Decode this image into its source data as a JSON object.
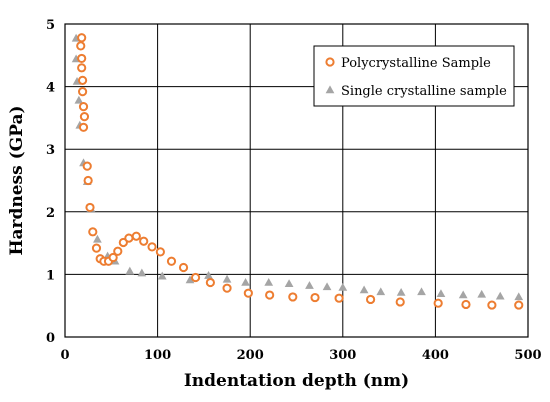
{
  "chart_data": {
    "type": "scatter",
    "title": "",
    "xlabel": "Indentation depth (nm)",
    "ylabel": "Hardness (GPa)",
    "xlim": [
      0,
      500
    ],
    "ylim": [
      0,
      5
    ],
    "xticks": [
      "0",
      "100",
      "200",
      "300",
      "400",
      "500"
    ],
    "yticks": [
      "0",
      "1",
      "2",
      "3",
      "4",
      "5"
    ],
    "grid": true,
    "legend_position": "top-right",
    "series": [
      {
        "name": "Polycrystalline Sample",
        "marker": "open-circle",
        "color": "#ED7D31",
        "x": [
          18,
          17,
          18,
          18,
          19,
          19,
          20,
          21,
          20,
          24,
          25,
          27,
          30,
          34,
          38,
          42,
          47,
          52,
          57,
          63,
          69,
          77,
          85,
          94,
          103,
          115,
          128,
          141,
          157,
          175,
          198,
          221,
          246,
          270,
          296,
          330,
          362,
          403,
          433,
          461,
          490
        ],
        "y": [
          4.78,
          4.65,
          4.45,
          4.3,
          4.1,
          3.92,
          3.68,
          3.52,
          3.35,
          2.73,
          2.5,
          2.07,
          1.68,
          1.42,
          1.25,
          1.21,
          1.21,
          1.27,
          1.37,
          1.51,
          1.58,
          1.61,
          1.53,
          1.44,
          1.36,
          1.21,
          1.11,
          0.95,
          0.87,
          0.78,
          0.7,
          0.67,
          0.64,
          0.63,
          0.62,
          0.6,
          0.56,
          0.54,
          0.52,
          0.51,
          0.51
        ]
      },
      {
        "name": "Single crystalline sample",
        "marker": "filled-triangle",
        "color": "#A5A5A5",
        "x": [
          12,
          12,
          13,
          15,
          16,
          20,
          24,
          28,
          35,
          46,
          54,
          70,
          83,
          105,
          135,
          155,
          175,
          195,
          220,
          242,
          264,
          283,
          300,
          323,
          341,
          363,
          385,
          406,
          430,
          450,
          470,
          490
        ],
        "y": [
          4.77,
          4.44,
          4.08,
          3.78,
          3.38,
          2.78,
          2.48,
          2.05,
          1.56,
          1.29,
          1.21,
          1.05,
          1.02,
          0.97,
          0.91,
          0.98,
          0.92,
          0.87,
          0.87,
          0.85,
          0.82,
          0.8,
          0.79,
          0.75,
          0.72,
          0.71,
          0.72,
          0.69,
          0.67,
          0.68,
          0.65,
          0.64
        ]
      }
    ]
  }
}
